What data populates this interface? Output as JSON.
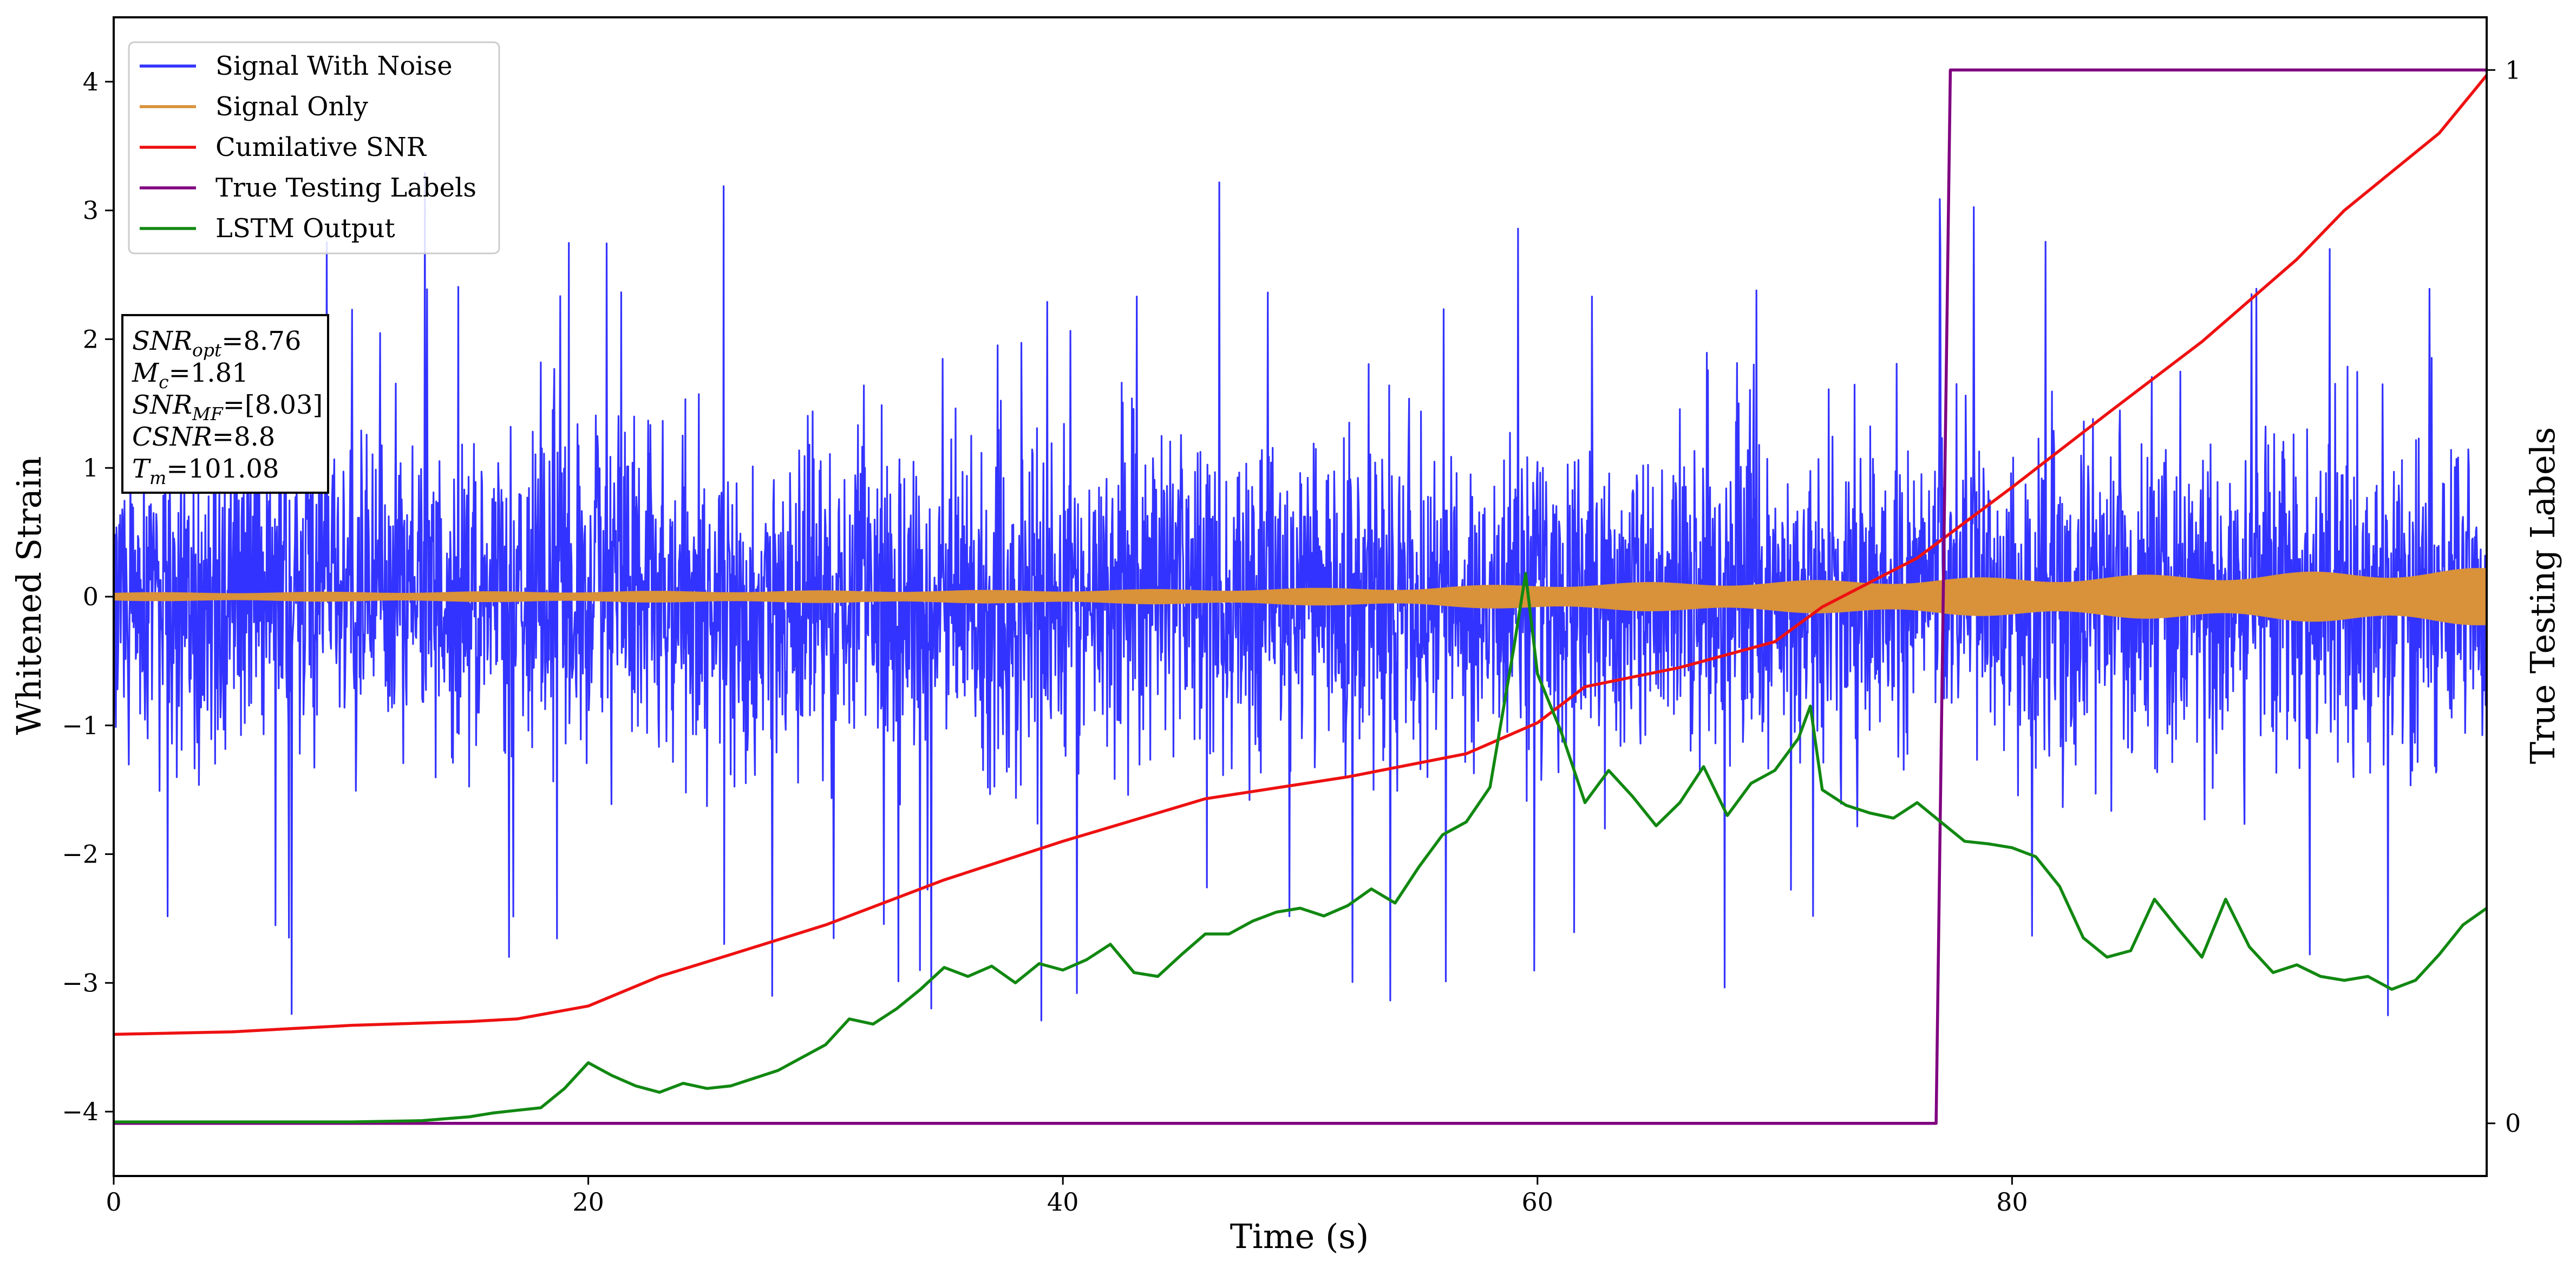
{
  "chart_data": {
    "type": "line",
    "xlabel": "Time (s)",
    "ylabel": "Whitened Strain",
    "y2label": "True Testing Labels",
    "xlim": [
      0,
      100
    ],
    "ylim": [
      -4.5,
      4.5
    ],
    "y2lim": [
      -0.05,
      1.05
    ],
    "x_ticks": [
      "0",
      "20",
      "40",
      "60",
      "80"
    ],
    "x_tick_values": [
      0,
      20,
      40,
      60,
      80
    ],
    "y_ticks": [
      "4",
      "3",
      "2",
      "1",
      "0",
      "−1",
      "−2",
      "−3",
      "−4"
    ],
    "y_tick_values": [
      4,
      3,
      2,
      1,
      0,
      -1,
      -2,
      -3,
      -4
    ],
    "y2_ticks": [
      "0",
      "1"
    ],
    "y2_tick_values": [
      0,
      1
    ],
    "legend_position": "upper-left",
    "grid": false,
    "colors": {
      "signal_with_noise": "#3333ff",
      "signal_only": "#d9913a",
      "cumulative_snr": "#ee1111",
      "true_labels": "#800080",
      "lstm_output": "#118811"
    },
    "series": [
      {
        "name": "Signal With Noise",
        "axis": "left",
        "note_values": "dense noise trace; approx amplitude envelope",
        "envelope": {
          "x": [
            0,
            100
          ],
          "typical_abs": 1.7,
          "peak_abs": 3.75
        }
      },
      {
        "name": "Signal Only",
        "axis": "left",
        "envelope": {
          "x": [
            0,
            20,
            40,
            55,
            60,
            70,
            80,
            90,
            100
          ],
          "amplitude": [
            0.03,
            0.04,
            0.05,
            0.07,
            0.1,
            0.12,
            0.15,
            0.18,
            0.22
          ]
        }
      },
      {
        "name": "Cumilative SNR",
        "axis": "left",
        "x": [
          0,
          5,
          10,
          15,
          17,
          20,
          23,
          26,
          30,
          35,
          40,
          46,
          52,
          57,
          60,
          62,
          66,
          70,
          72,
          76,
          80,
          84,
          88,
          92,
          94,
          96,
          98,
          100
        ],
        "y": [
          -3.4,
          -3.38,
          -3.33,
          -3.3,
          -3.28,
          -3.18,
          -2.95,
          -2.78,
          -2.55,
          -2.2,
          -1.9,
          -1.57,
          -1.4,
          -1.22,
          -0.98,
          -0.7,
          -0.55,
          -0.35,
          -0.08,
          0.3,
          0.85,
          1.42,
          1.98,
          2.62,
          3.0,
          3.3,
          3.6,
          4.05
        ]
      },
      {
        "name": "True Testing Labels",
        "axis": "right",
        "x": [
          0,
          76.8,
          77.4,
          100
        ],
        "y": [
          0,
          0,
          1,
          1
        ]
      },
      {
        "name": "LSTM Output",
        "axis": "left",
        "x": [
          0,
          10,
          13,
          15,
          16,
          17,
          18,
          19,
          20,
          21,
          22,
          23,
          24,
          25,
          26,
          28,
          29,
          30,
          31,
          32,
          33,
          34,
          35,
          36,
          37,
          38,
          39,
          40,
          41,
          42,
          43,
          44,
          45,
          46,
          47,
          48,
          49,
          50,
          51,
          52,
          53,
          54,
          55,
          56,
          57,
          58,
          59,
          59.5,
          60,
          61,
          62,
          63,
          64,
          65,
          66,
          67,
          68,
          69,
          70,
          71,
          71.5,
          72,
          73,
          74,
          75,
          76,
          77,
          78,
          79,
          80,
          81,
          82,
          83,
          84,
          85,
          86,
          87,
          88,
          89,
          90,
          91,
          92,
          93,
          94,
          95,
          96,
          97,
          98,
          99,
          100
        ],
        "y": [
          -4.08,
          -4.08,
          -4.07,
          -4.04,
          -4.01,
          -3.99,
          -3.97,
          -3.82,
          -3.62,
          -3.72,
          -3.8,
          -3.85,
          -3.78,
          -3.82,
          -3.8,
          -3.68,
          -3.58,
          -3.48,
          -3.28,
          -3.32,
          -3.2,
          -3.05,
          -2.88,
          -2.95,
          -2.87,
          -3.0,
          -2.85,
          -2.9,
          -2.82,
          -2.7,
          -2.92,
          -2.95,
          -2.78,
          -2.62,
          -2.62,
          -2.52,
          -2.45,
          -2.42,
          -2.48,
          -2.4,
          -2.27,
          -2.38,
          -2.1,
          -1.85,
          -1.75,
          -1.48,
          -0.4,
          0.18,
          -0.6,
          -1.05,
          -1.6,
          -1.35,
          -1.55,
          -1.78,
          -1.6,
          -1.32,
          -1.7,
          -1.45,
          -1.35,
          -1.1,
          -0.85,
          -1.5,
          -1.62,
          -1.68,
          -1.72,
          -1.6,
          -1.75,
          -1.9,
          -1.92,
          -1.95,
          -2.02,
          -2.25,
          -2.65,
          -2.8,
          -2.75,
          -2.35,
          -2.58,
          -2.8,
          -2.35,
          -2.72,
          -2.92,
          -2.86,
          -2.95,
          -2.98,
          -2.95,
          -3.05,
          -2.98,
          -2.78,
          -2.55,
          -2.42
        ]
      }
    ],
    "annotation": [
      {
        "base": "SNR",
        "sub": "opt",
        "rest": "=8.76"
      },
      {
        "base": "M",
        "sub": "c",
        "rest": "=1.81"
      },
      {
        "base": "SNR",
        "sub": "MF",
        "rest": "=[8.03]"
      },
      {
        "base": "CSNR",
        "sub": "",
        "rest": "=8.8"
      },
      {
        "base": "T",
        "sub": "m",
        "rest": "=101.08"
      }
    ]
  }
}
